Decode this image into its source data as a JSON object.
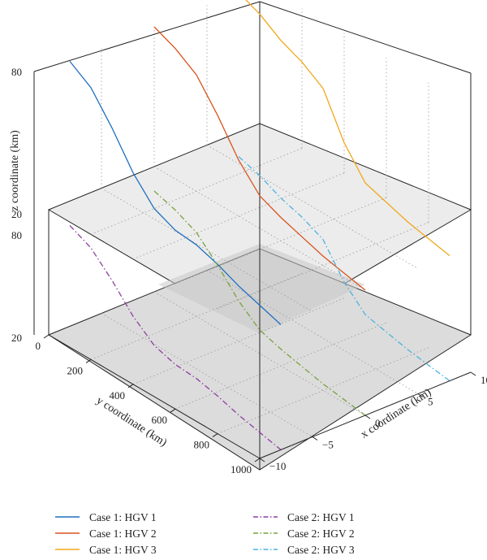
{
  "chart_data": {
    "type": "line",
    "subtype": "3d-stacked-trajectories",
    "title": "",
    "xlabel": "x coordinate (km)",
    "ylabel": "y coordinate (km)",
    "zlabel": "z coordinate (km)",
    "x_ticks": [
      "10",
      "5",
      "0",
      "−5",
      "−10"
    ],
    "y_ticks": [
      "0",
      "200",
      "400",
      "600",
      "800",
      "1000"
    ],
    "z_ticks_upper": [
      "80",
      "20"
    ],
    "z_ticks_lower": [
      "80",
      "20"
    ],
    "xlim": [
      -10,
      10
    ],
    "ylim": [
      0,
      1000
    ],
    "zlim": [
      20,
      80
    ],
    "grid": true,
    "legend_position": "bottom",
    "panels": [
      {
        "name": "Case 1",
        "position": "upper",
        "series": [
          {
            "name": "Case 1: HGV 1",
            "color": "#1f6fbf",
            "dash": "solid",
            "x": -8,
            "y": [
              0,
              100,
              200,
              300,
              400,
              500,
              600,
              700,
              800,
              900,
              1000
            ],
            "z": [
              80,
              74,
              62,
              48,
              38,
              34,
              33,
              30,
              26,
              23,
              20
            ]
          },
          {
            "name": "Case 1: HGV 2",
            "color": "#d9531e",
            "dash": "solid",
            "x": 0,
            "y": [
              0,
              100,
              200,
              300,
              400,
              500,
              600,
              700,
              800,
              900,
              1000
            ],
            "z": [
              80,
              76,
              70,
              58,
              44,
              34,
              30,
              27,
              24,
              22,
              20
            ]
          },
          {
            "name": "Case 1: HGV 3",
            "color": "#f0a81c",
            "dash": "solid",
            "x": 8,
            "y": [
              0,
              100,
              200,
              300,
              400,
              500,
              600,
              700,
              800,
              900,
              1000
            ],
            "z": [
              80,
              76,
              70,
              66,
              60,
              42,
              30,
              27,
              24,
              22,
              20
            ]
          }
        ]
      },
      {
        "name": "Case 2",
        "position": "lower",
        "series": [
          {
            "name": "Case 2: HGV 1",
            "color": "#8e3fa0",
            "dash": "dashdot",
            "x": -8,
            "y": [
              0,
              100,
              200,
              300,
              400,
              500,
              600,
              700,
              800,
              900,
              1000
            ],
            "z": [
              80,
              74,
              62,
              48,
              38,
              34,
              33,
              30,
              26,
              23,
              20
            ]
          },
          {
            "name": "Case 2: HGV 2",
            "color": "#77a33c",
            "dash": "dashdot",
            "x": 0,
            "y": [
              0,
              100,
              200,
              300,
              400,
              500,
              600,
              700,
              800,
              900,
              1000
            ],
            "z": [
              80,
              76,
              70,
              58,
              44,
              34,
              30,
              27,
              24,
              22,
              20
            ]
          },
          {
            "name": "Case 2: HGV 3",
            "color": "#4cb3de",
            "dash": "dashdot",
            "x": 8,
            "y": [
              0,
              100,
              200,
              300,
              400,
              500,
              600,
              700,
              800,
              900,
              1000
            ],
            "z": [
              80,
              76,
              70,
              66,
              60,
              42,
              30,
              27,
              24,
              22,
              20
            ]
          }
        ]
      }
    ]
  },
  "legend": {
    "items": [
      {
        "label": "Case 1: HGV 1",
        "color": "#1f6fbf",
        "dash": "solid"
      },
      {
        "label": "Case 1: HGV 2",
        "color": "#d9531e",
        "dash": "solid"
      },
      {
        "label": "Case 1: HGV 3",
        "color": "#f0a81c",
        "dash": "solid"
      },
      {
        "label": "Case 2: HGV 1",
        "color": "#8e3fa0",
        "dash": "dashdot"
      },
      {
        "label": "Case 2: HGV 2",
        "color": "#77a33c",
        "dash": "dashdot"
      },
      {
        "label": "Case 2: HGV 3",
        "color": "#4cb3de",
        "dash": "dashdot"
      }
    ]
  }
}
